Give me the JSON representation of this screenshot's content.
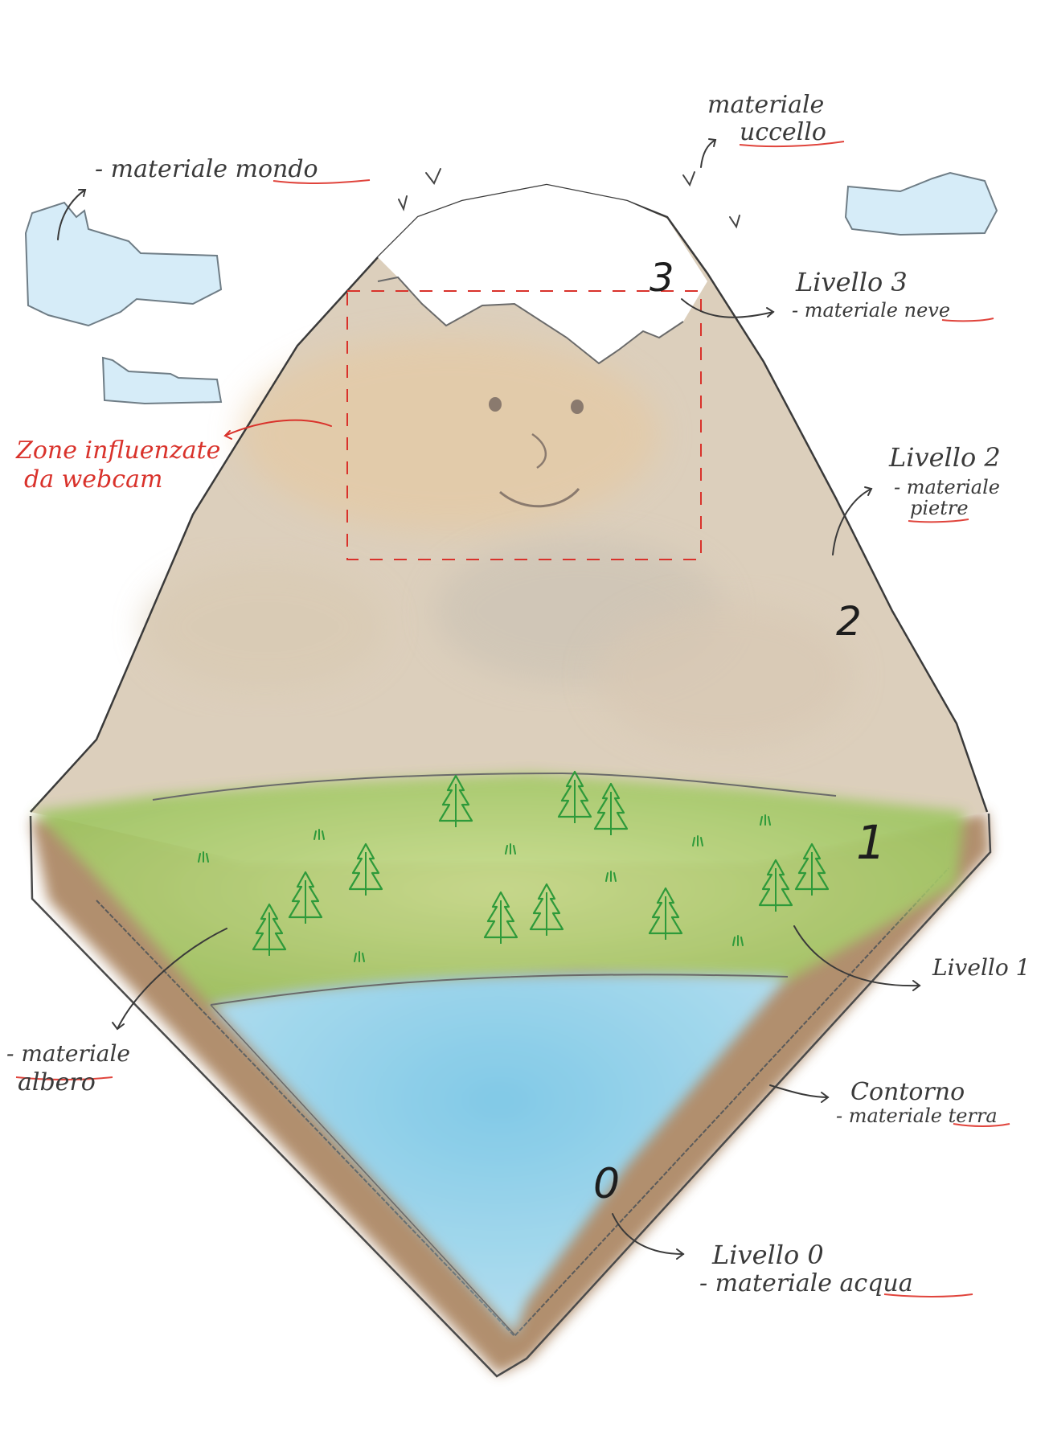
{
  "annotations": {
    "mondo": {
      "line1": "- materiale mondo"
    },
    "uccello": {
      "line1": "materiale",
      "line2": "uccello"
    },
    "level3": {
      "line1": "Livello 3",
      "line2": "- materiale neve"
    },
    "level2": {
      "line1": "Livello 2",
      "line2": "- materiale",
      "line3": "pietre"
    },
    "level1": {
      "line1": "Livello 1"
    },
    "albero": {
      "line1": "- materiale",
      "line2": "albero"
    },
    "contorno": {
      "line1": "Contorno",
      "line2": "- materiale terra"
    },
    "level0": {
      "line1": "Livello 0",
      "line2": "- materiale acqua"
    },
    "webcam": {
      "line1": "Zone influenzate",
      "line2": "da webcam"
    }
  },
  "level_numbers": {
    "n3": "3",
    "n2": "2",
    "n1": "1",
    "n0": "0"
  },
  "colors": {
    "sky_cloud": "#d6ecf8",
    "snow": "#ffffff",
    "stone": "#d9cbb6",
    "grass": "#a9cd6c",
    "water": "#8fd4f0",
    "earth": "#a47b55",
    "tree": "#2e9a3a",
    "annotation_red": "#d9322b",
    "ink": "#2b2b2b"
  },
  "icons": [
    "cloud-icon",
    "bird-icon",
    "pine-tree-icon",
    "face-icon"
  ]
}
